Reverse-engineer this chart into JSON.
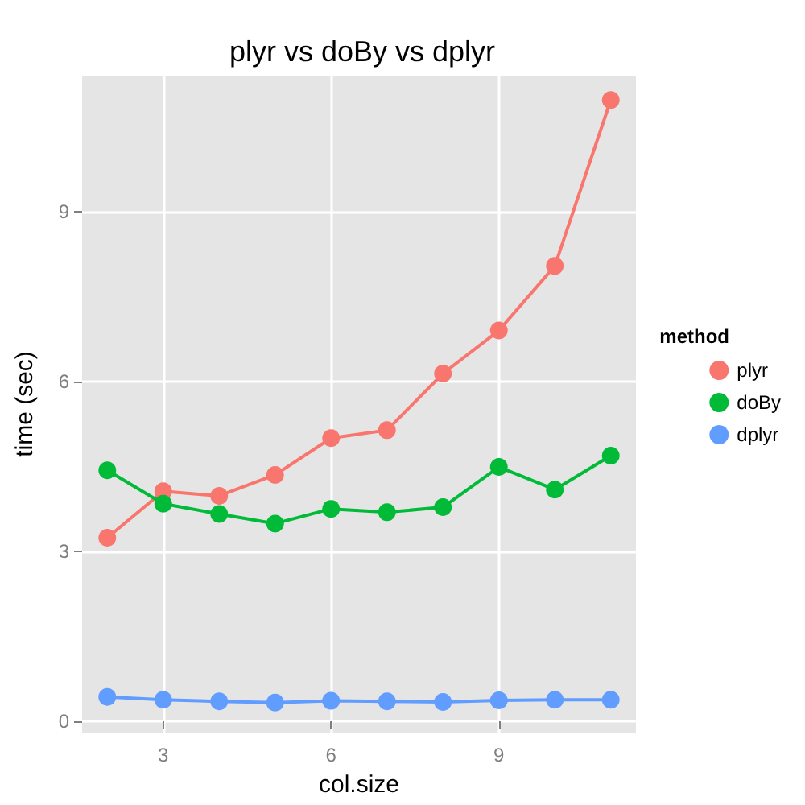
{
  "chart_data": {
    "type": "line",
    "title": "plyr vs doBy vs dplyr",
    "xlabel": "col.size",
    "ylabel": "time (sec)",
    "legend_title": "method",
    "x": [
      2,
      3,
      4,
      5,
      6,
      7,
      8,
      9,
      10,
      11
    ],
    "series": [
      {
        "name": "plyr",
        "color": "#f8766d",
        "values": [
          3.24,
          4.06,
          3.98,
          4.35,
          5.0,
          5.14,
          6.14,
          6.9,
          8.04,
          10.97
        ]
      },
      {
        "name": "doBy",
        "color": "#00ba38",
        "values": [
          4.43,
          3.84,
          3.66,
          3.49,
          3.75,
          3.69,
          3.78,
          4.49,
          4.09,
          4.69
        ]
      },
      {
        "name": "dplyr",
        "color": "#619cff",
        "values": [
          0.43,
          0.38,
          0.35,
          0.33,
          0.36,
          0.35,
          0.34,
          0.37,
          0.38,
          0.38
        ]
      }
    ],
    "xlim": [
      1.55,
      11.45
    ],
    "ylim": [
      -0.2,
      11.4
    ],
    "xticks": [
      3,
      6,
      9
    ],
    "yticks": [
      0,
      3,
      6,
      9
    ],
    "grid": true,
    "legend": "right",
    "marker": "circle",
    "line_style": "solid"
  }
}
